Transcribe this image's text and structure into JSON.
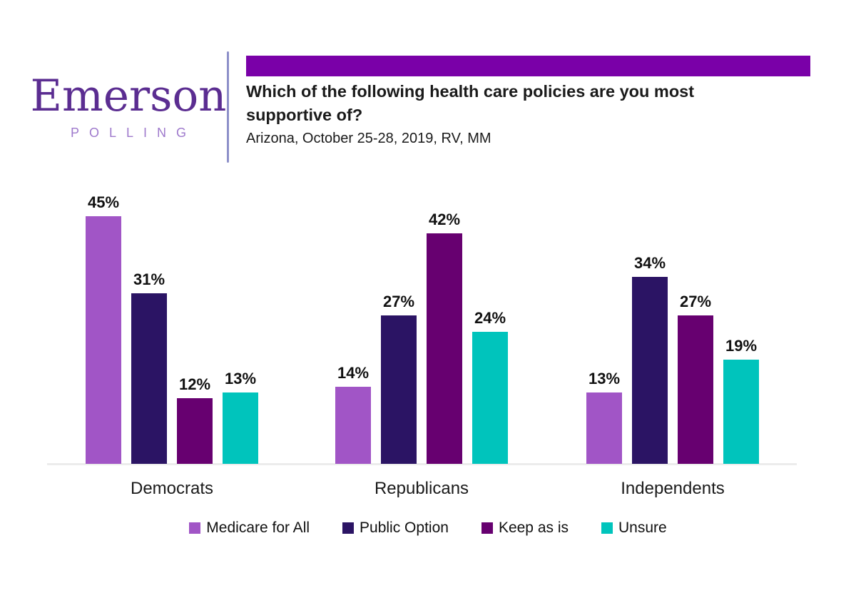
{
  "brand": {
    "name": "Emerson",
    "tagline": "P O L L I N G",
    "tagline_plain": "POLLING",
    "name_color": "#5B2D91",
    "tagline_color": "#9E79CC",
    "divider_color": "#8D90C9"
  },
  "header": {
    "accent_bar_color": "#7A00A8",
    "title": "Which of the following health care policies are you most supportive of?",
    "subtitle": "Arizona, October 25-28, 2019, RV, MM"
  },
  "chart_data": {
    "type": "bar",
    "title": "Which of the following health care policies are you most supportive of?",
    "subtitle": "Arizona, October 25-28, 2019, RV, MM",
    "categories": [
      "Democrats",
      "Republicans",
      "Independents"
    ],
    "series": [
      {
        "name": "Medicare for All",
        "color": "#A155C6",
        "values": [
          45,
          14,
          13
        ]
      },
      {
        "name": "Public Option",
        "color": "#2B1464",
        "values": [
          31,
          27,
          34
        ]
      },
      {
        "name": "Keep as is",
        "color": "#670070",
        "values": [
          12,
          42,
          27
        ]
      },
      {
        "name": "Unsure",
        "color": "#00C4BC",
        "values": [
          13,
          24,
          19
        ]
      }
    ],
    "value_suffix": "%",
    "data_labels": true,
    "grid": false,
    "y_axis_visible": false,
    "x_axis_line_color": "#ECECEC",
    "ylim": [
      0,
      50
    ],
    "legend_position": "bottom"
  }
}
